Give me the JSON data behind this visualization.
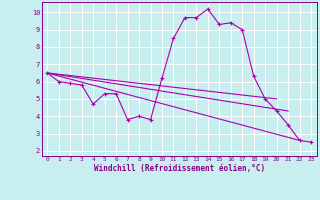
{
  "background_color": "#c8eef0",
  "grid_color": "#ffffff",
  "line_color": "#aa00aa",
  "marker_color": "#aa00aa",
  "xlabel": "Windchill (Refroidissement éolien,°C)",
  "xlim": [
    -0.5,
    23.5
  ],
  "ylim": [
    1.7,
    10.6
  ],
  "yticks": [
    2,
    3,
    4,
    5,
    6,
    7,
    8,
    9,
    10
  ],
  "xticks": [
    0,
    1,
    2,
    3,
    4,
    5,
    6,
    7,
    8,
    9,
    10,
    11,
    12,
    13,
    14,
    15,
    16,
    17,
    18,
    19,
    20,
    21,
    22,
    23
  ],
  "series": [
    {
      "x": [
        0,
        1,
        2,
        3,
        4,
        5,
        6,
        7,
        8,
        9,
        10,
        11,
        12,
        13,
        14,
        15,
        16,
        17,
        18,
        19,
        20,
        21,
        22,
        23
      ],
      "y": [
        6.5,
        6.0,
        5.9,
        5.8,
        4.7,
        5.3,
        5.3,
        3.8,
        4.0,
        3.8,
        6.2,
        8.5,
        9.7,
        9.7,
        10.2,
        9.3,
        9.4,
        9.0,
        6.3,
        5.0,
        4.3,
        3.5,
        2.6,
        2.5
      ],
      "has_markers": true
    },
    {
      "x": [
        0,
        20
      ],
      "y": [
        6.5,
        5.0
      ],
      "has_markers": false
    },
    {
      "x": [
        0,
        21
      ],
      "y": [
        6.5,
        4.3
      ],
      "has_markers": false
    },
    {
      "x": [
        0,
        22
      ],
      "y": [
        6.5,
        2.6
      ],
      "has_markers": false
    }
  ]
}
